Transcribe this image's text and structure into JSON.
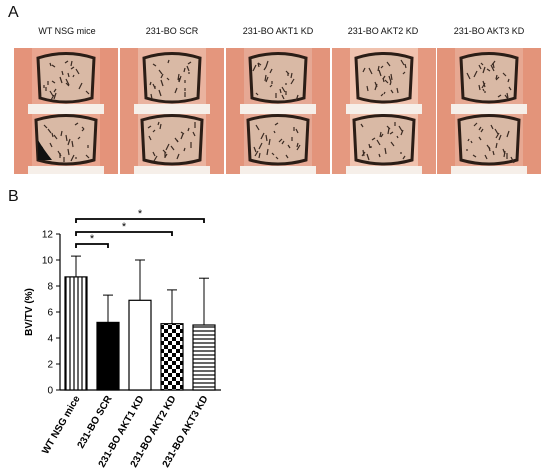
{
  "panel_a": {
    "letter": "A",
    "columns": [
      {
        "label": "WT NSG mice"
      },
      {
        "label": "231-BO SCR"
      },
      {
        "label": "231-BO AKT1 KD"
      },
      {
        "label": "231-BO AKT2 KD"
      },
      {
        "label": "231-BO AKT3 KD"
      }
    ]
  },
  "panel_b": {
    "letter": "B"
  },
  "chart_data": {
    "type": "bar",
    "title": "",
    "xlabel": "",
    "ylabel": "BV/TV (%)",
    "ylim": [
      0,
      12
    ],
    "yticks": [
      "0",
      "2",
      "4",
      "6",
      "8",
      "10",
      "12"
    ],
    "categories": [
      "WT NSG mice",
      "231-BO SCR",
      "231-BO AKT1 KD",
      "231-BO AKT2 KD",
      "231-BO AKT3 KD"
    ],
    "values": [
      8.7,
      5.2,
      6.9,
      5.1,
      5.0
    ],
    "error_upper": [
      10.3,
      7.3,
      10.0,
      7.7,
      8.6
    ],
    "fill_patterns": [
      "vertical-stripes",
      "solid-black",
      "white",
      "checkerboard",
      "horizontal-stripes"
    ],
    "significance": [
      {
        "from": "WT NSG mice",
        "to": "231-BO SCR",
        "label": "*"
      },
      {
        "from": "WT NSG mice",
        "to": "231-BO AKT2 KD",
        "label": "*"
      },
      {
        "from": "WT NSG mice",
        "to": "231-BO AKT3 KD",
        "label": "*"
      }
    ],
    "grid": false,
    "legend": "none"
  }
}
